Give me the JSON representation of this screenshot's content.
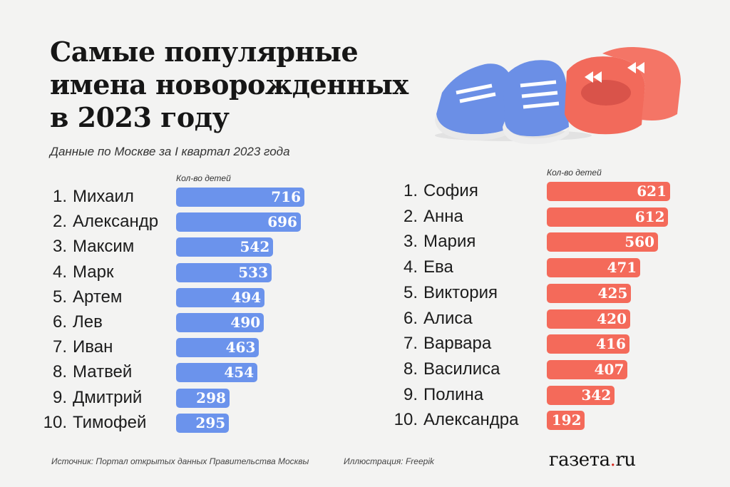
{
  "title_lines": [
    "Самые популярные",
    "имена новорожденных",
    "в 2023 году"
  ],
  "subtitle": "Данные по Москве за I квартал 2023 года",
  "colors": {
    "boys": "#6b93ec",
    "girls": "#f46a5a",
    "background": "#f3f3f2"
  },
  "chart_data": [
    {
      "type": "bar",
      "orientation": "horizontal",
      "column_label": "Кол-во детей",
      "color": "#6b93ec",
      "ranks": [
        "1.",
        "2.",
        "3.",
        "4.",
        "5.",
        "6.",
        "7.",
        "8.",
        "9.",
        "10."
      ],
      "categories": [
        "Михаил",
        "Александр",
        "Максим",
        "Марк",
        "Артем",
        "Лев",
        "Иван",
        "Матвей",
        "Дмитрий",
        "Тимофей"
      ],
      "values": [
        716,
        696,
        542,
        533,
        494,
        490,
        463,
        454,
        298,
        295
      ]
    },
    {
      "type": "bar",
      "orientation": "horizontal",
      "column_label": "Кол-во детей",
      "color": "#f46a5a",
      "ranks": [
        "1.",
        "2.",
        "3.",
        "4.",
        "5.",
        "6.",
        "7.",
        "8.",
        "9.",
        "10."
      ],
      "categories": [
        "София",
        "Анна",
        "Мария",
        "Ева",
        "Виктория",
        "Алиса",
        "Варвара",
        "Василиса",
        "Полина",
        "Александра"
      ],
      "values": [
        621,
        612,
        560,
        471,
        425,
        420,
        416,
        407,
        342,
        192
      ]
    }
  ],
  "footer": {
    "source": "Источник: Портал открытых данных Правительства Москвы",
    "illustration": "Иллюстрация:  Freepik"
  },
  "logo": "газета.ru",
  "illustration": "baby-shoes-icon"
}
